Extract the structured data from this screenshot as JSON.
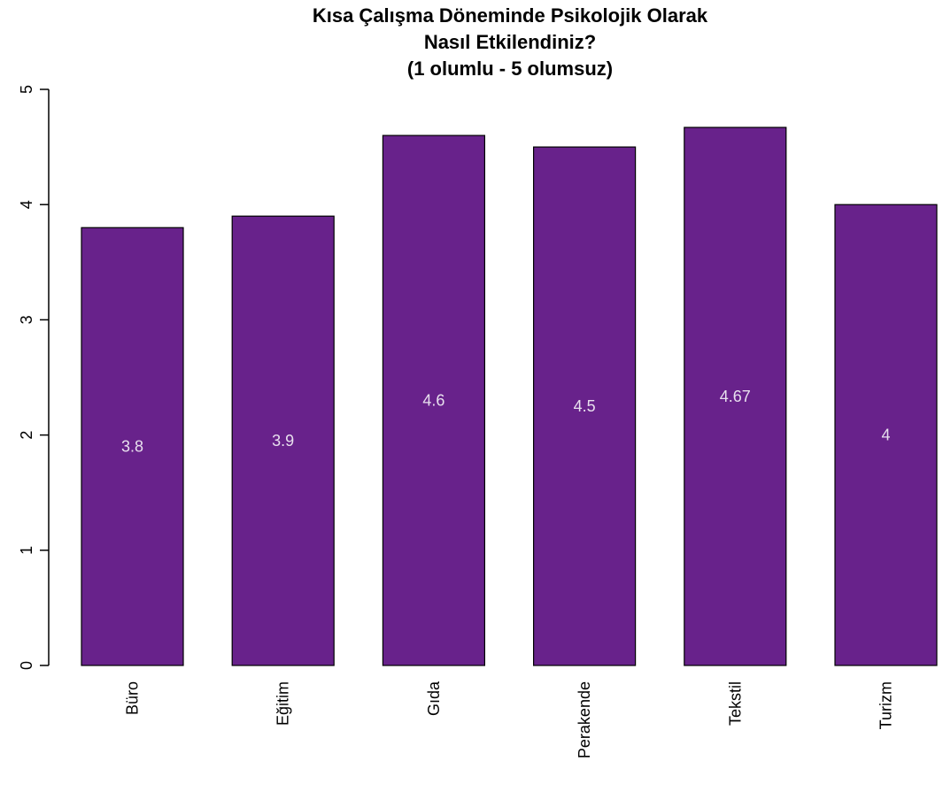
{
  "chart_data": {
    "type": "bar",
    "title_lines": [
      "Kısa Çalışma Döneminde Psikolojik Olarak",
      "Nasıl Etkilendiniz?",
      "(1 olumlu - 5 olumsuz)"
    ],
    "xlabel": "",
    "ylabel": "",
    "categories": [
      "Büro",
      "Eğitim",
      "Gıda",
      "Perakende",
      "Tekstil",
      "Turizm"
    ],
    "values": [
      3.8,
      3.9,
      4.6,
      4.5,
      4.67,
      4
    ],
    "data_labels": [
      "3.8",
      "3.9",
      "4.6",
      "4.5",
      "4.67",
      "4"
    ],
    "yticks": [
      0,
      1,
      2,
      3,
      4,
      5
    ],
    "ylim": [
      0,
      5
    ],
    "grid": false,
    "bar_color": "#68228b",
    "bar_outline_color": "#000000",
    "label_color": "#e8e0ee"
  }
}
